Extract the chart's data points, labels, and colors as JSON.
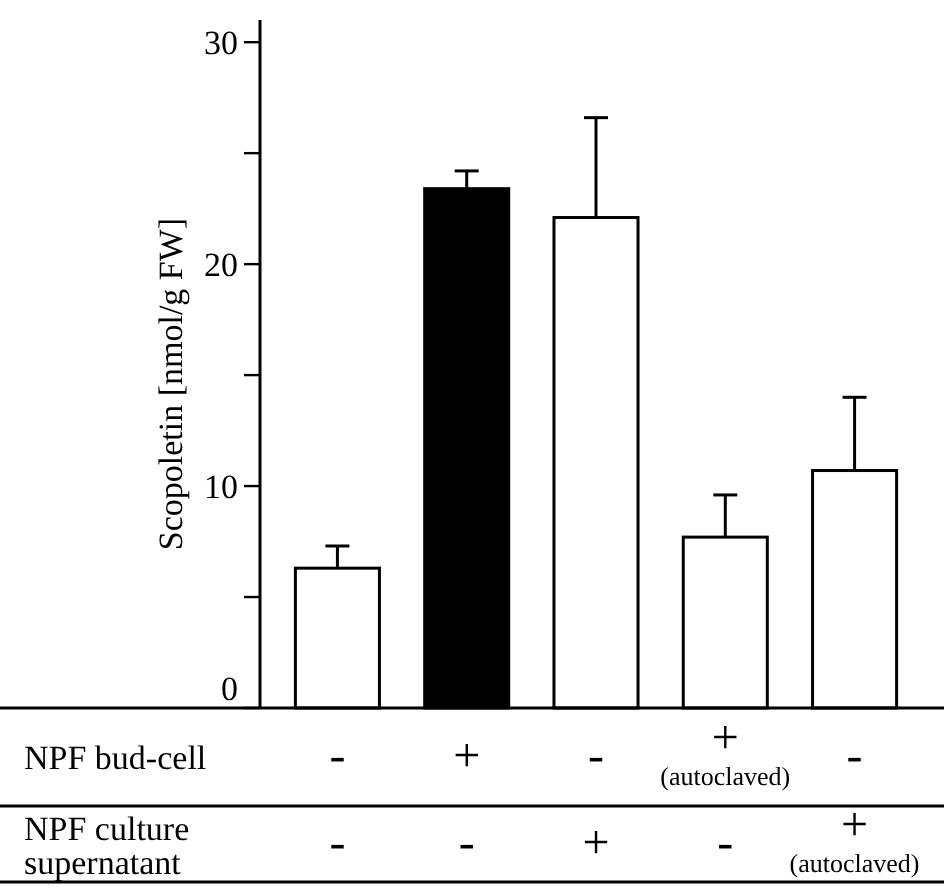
{
  "chart_data": {
    "type": "bar",
    "ylabel": "Scopoletin [nmol/g FW]",
    "categories": [
      null,
      null,
      null,
      null,
      null
    ],
    "values": [
      6.3,
      23.4,
      22.1,
      7.7,
      10.7
    ],
    "colors": [
      "#ffffff",
      "#000000",
      "#ffffff",
      "#ffffff",
      "#ffffff"
    ],
    "errors": [
      [
        6.3,
        7.3
      ],
      [
        23.4,
        24.2
      ],
      [
        22.1,
        26.6
      ],
      [
        7.7,
        9.6
      ],
      [
        10.7,
        14.0
      ]
    ],
    "ylim": [
      0,
      31
    ],
    "yticks": [
      0,
      {
        "value": 5,
        "label": null
      },
      10,
      {
        "value": 15,
        "label": null
      },
      20,
      {
        "value": 25,
        "label": null
      },
      30
    ],
    "annotations": [
      "NPF bud-cell",
      "-",
      "+",
      "-",
      "+ (autoclaved)",
      "-",
      "NPF culture supernatant",
      "-",
      "-",
      "+",
      "-",
      "+ (autoclaved)"
    ]
  }
}
